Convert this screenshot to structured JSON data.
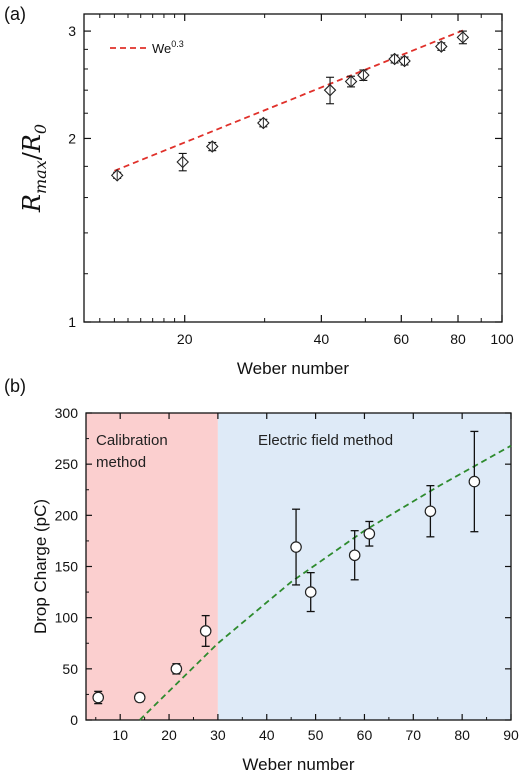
{
  "chart_data": [
    {
      "type": "scatter",
      "panel_label": "(a)",
      "xlabel": "Weber number",
      "ylabel": "R_max/R_0",
      "ylabel_parts": {
        "base": "R",
        "sub": "max",
        "sep": "/",
        "base2": "R",
        "sub2": "0"
      },
      "x_scale": "log",
      "y_scale": "log",
      "xlim": [
        12,
        100
      ],
      "ylim": [
        1,
        3.2
      ],
      "x_ticks": [
        20,
        40,
        60,
        80,
        100
      ],
      "y_ticks": [
        1,
        2,
        3
      ],
      "grid": false,
      "legend": {
        "position": "top-left",
        "base": "We",
        "exponent": "0.3"
      },
      "fit": {
        "label": "We^0.3",
        "coef": 0.802,
        "exponent": 0.3,
        "x_range": [
          14,
          82
        ],
        "color": "#e0302a",
        "style": "dashed"
      },
      "series": [
        {
          "marker": "diamond",
          "x": [
            14.2,
            19.8,
            23.0,
            29.8,
            41.8,
            46.5,
            49.5,
            58.0,
            61.0,
            73.5,
            82.0
          ],
          "y": [
            1.74,
            1.83,
            1.94,
            2.12,
            2.4,
            2.48,
            2.54,
            2.7,
            2.68,
            2.83,
            2.93
          ],
          "y_err": [
            0.02,
            0.06,
            0.03,
            0.03,
            0.12,
            0.05,
            0.05,
            0.04,
            0.04,
            0.04,
            0.07
          ],
          "x_err": [
            0.3,
            0.4,
            0.6,
            0.6,
            1.0,
            1.2,
            1.2,
            1.5,
            1.5,
            1.8,
            1.5
          ]
        }
      ]
    },
    {
      "type": "scatter",
      "panel_label": "(b)",
      "xlabel": "Weber number",
      "ylabel": "Drop Charge (pC)",
      "xlim": [
        3,
        90
      ],
      "ylim": [
        0,
        300
      ],
      "x_ticks": [
        10,
        20,
        30,
        40,
        50,
        60,
        70,
        80,
        90
      ],
      "y_ticks": [
        0,
        50,
        100,
        150,
        200,
        250,
        300
      ],
      "grid": false,
      "regions": [
        {
          "label_lines": [
            "Calibration",
            "method"
          ],
          "x_range": [
            3,
            30
          ],
          "color": "#fbcfcf"
        },
        {
          "label_lines": [
            "Electric field method"
          ],
          "x_range": [
            30,
            90
          ],
          "color": "#deeaf7"
        }
      ],
      "fit": {
        "x": [
          14,
          30,
          45,
          60,
          75,
          90
        ],
        "y": [
          0,
          75,
          135,
          185,
          228,
          268
        ],
        "color": "#2e8b2e",
        "style": "dashed"
      },
      "series": [
        {
          "marker": "circle",
          "x": [
            5.5,
            14.0,
            21.5,
            27.5,
            46.0,
            49.0,
            58.0,
            61.0,
            73.5,
            82.5
          ],
          "y": [
            22,
            22,
            50,
            87,
            169,
            125,
            161,
            182,
            204,
            233
          ],
          "y_err": [
            6,
            4,
            5,
            15,
            37,
            19,
            24,
            12,
            25,
            49
          ]
        }
      ]
    }
  ]
}
